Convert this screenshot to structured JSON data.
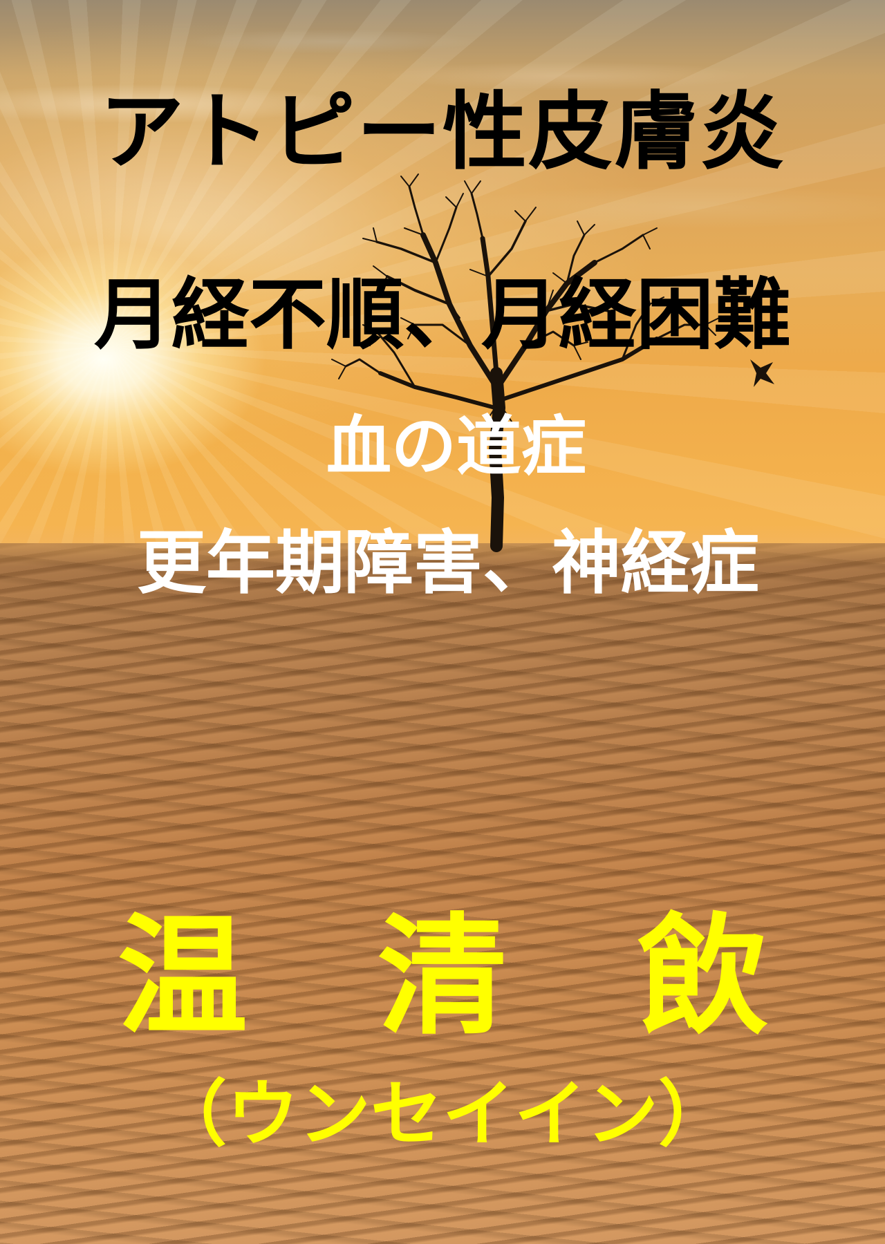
{
  "poster": {
    "heading_condition_1": "アトピー性皮膚炎",
    "heading_condition_2": "月経不順、月経困難",
    "heading_condition_3": "血の道症",
    "heading_condition_4": "更年期障害、神経症",
    "product_name": "温　清　飲",
    "product_reading": "（ウンセイイン）"
  },
  "colors": {
    "heading_dark": "#000000",
    "heading_light": "#ffffff",
    "product_accent": "#ffff00",
    "sky_top": "#9b8a70",
    "sky_bottom": "#f6b552",
    "sand": "#c0814a"
  },
  "icons": {
    "background_motif": "bare-tree-icon"
  }
}
